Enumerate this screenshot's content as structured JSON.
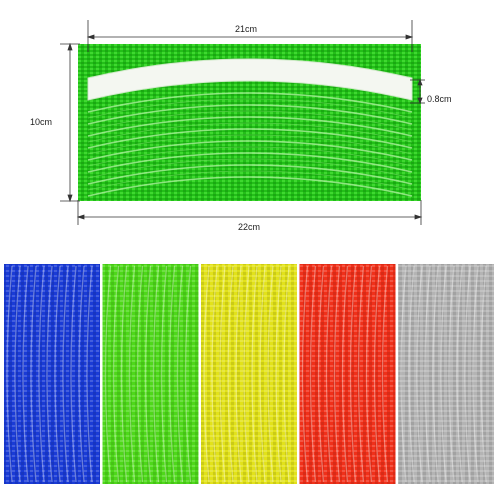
{
  "product": {
    "colors": {
      "main": "#24c21a",
      "blue": "#1a3bd6",
      "green": "#4ed81a",
      "yellow": "#e2e21a",
      "red": "#f0301a",
      "silver": "#b4b4b4"
    }
  },
  "dimensions": {
    "top_width": "21cm",
    "height": "10cm",
    "strip_width": "0.8cm",
    "bottom_width": "22cm"
  },
  "swatches": [
    {
      "name": "blue",
      "color": "#1a3bd6"
    },
    {
      "name": "green",
      "color": "#4ed81a"
    },
    {
      "name": "yellow",
      "color": "#e2e21a"
    },
    {
      "name": "red",
      "color": "#f0301a"
    },
    {
      "name": "silver",
      "color": "#b4b4b4"
    }
  ]
}
